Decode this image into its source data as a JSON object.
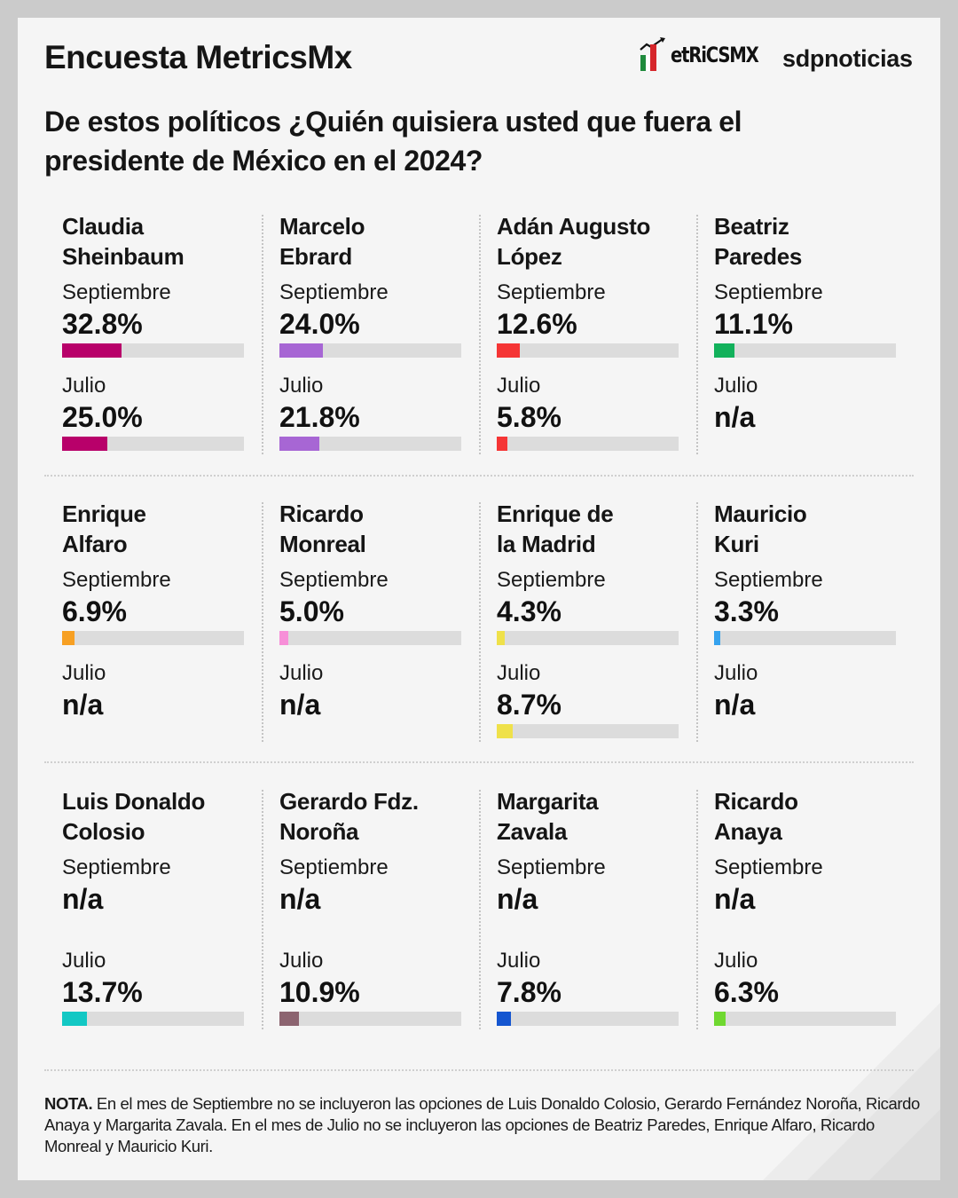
{
  "header": {
    "title": "Encuesta MetricsMx",
    "logo_metrics": "etRiCSMX",
    "logo_metrics_full": "MetRiCSMX",
    "logo_sdp": "sdpnoticias",
    "question": "De estos políticos ¿Quién quisiera usted que fuera el presidente de México en el 2024?"
  },
  "colors": {
    "page_background": "#cbcbcb",
    "card_background": "#f5f5f5",
    "track": "#dcdcdc",
    "logo_green": "#1f8a3c",
    "logo_red": "#d6262b"
  },
  "chart_data": {
    "type": "bar",
    "title": "De estos políticos ¿Quién quisiera usted que fuera el presidente de México en el 2024?",
    "xlabel": "",
    "ylabel": "",
    "ylim": [
      0,
      100
    ],
    "unit": "%",
    "periods": [
      "Septiembre",
      "Julio"
    ],
    "missing_label": "n/a",
    "candidates": [
      {
        "name": "Claudia Sheinbaum",
        "name_lines": [
          "Claudia",
          "Sheinbaum"
        ],
        "color": "#b8006a",
        "septiembre": 32.8,
        "julio": 25.0,
        "septiembre_label": "32.8%",
        "julio_label": "25.0%"
      },
      {
        "name": "Marcelo Ebrard",
        "name_lines": [
          "Marcelo",
          "Ebrard"
        ],
        "color": "#a766d4",
        "septiembre": 24.0,
        "julio": 21.8,
        "septiembre_label": "24.0%",
        "julio_label": "21.8%"
      },
      {
        "name": "Adán Augusto López",
        "name_lines": [
          "Adán Augusto",
          "López"
        ],
        "color": "#f53535",
        "septiembre": 12.6,
        "julio": 5.8,
        "septiembre_label": "12.6%",
        "julio_label": "5.8%"
      },
      {
        "name": "Beatriz Paredes",
        "name_lines": [
          "Beatriz",
          "Paredes"
        ],
        "color": "#12b15b",
        "septiembre": 11.1,
        "julio": null,
        "septiembre_label": "11.1%",
        "julio_label": "n/a"
      },
      {
        "name": "Enrique Alfaro",
        "name_lines": [
          "Enrique",
          "Alfaro"
        ],
        "color": "#f7a023",
        "septiembre": 6.9,
        "julio": null,
        "septiembre_label": "6.9%",
        "julio_label": "n/a"
      },
      {
        "name": "Ricardo Monreal",
        "name_lines": [
          "Ricardo",
          "Monreal"
        ],
        "color": "#f78fd8",
        "septiembre": 5.0,
        "julio": null,
        "septiembre_label": "5.0%",
        "julio_label": "n/a"
      },
      {
        "name": "Enrique de la Madrid",
        "name_lines": [
          "Enrique de",
          "la Madrid"
        ],
        "color": "#efe14a",
        "septiembre": 4.3,
        "julio": 8.7,
        "septiembre_label": "4.3%",
        "julio_label": "8.7%"
      },
      {
        "name": "Mauricio Kuri",
        "name_lines": [
          "Mauricio",
          "Kuri"
        ],
        "color": "#35a2ee",
        "septiembre": 3.3,
        "julio": null,
        "septiembre_label": "3.3%",
        "julio_label": "n/a"
      },
      {
        "name": "Luis Donaldo Colosio",
        "name_lines": [
          "Luis Donaldo",
          "Colosio"
        ],
        "color": "#13c8c4",
        "septiembre": null,
        "julio": 13.7,
        "septiembre_label": "n/a",
        "julio_label": "13.7%"
      },
      {
        "name": "Gerardo Fdz. Noroña",
        "name_lines": [
          "Gerardo Fdz.",
          "Noroña"
        ],
        "color": "#8c6470",
        "septiembre": null,
        "julio": 10.9,
        "septiembre_label": "n/a",
        "julio_label": "10.9%"
      },
      {
        "name": "Margarita Zavala",
        "name_lines": [
          "Margarita",
          "Zavala"
        ],
        "color": "#1556d0",
        "septiembre": null,
        "julio": 7.8,
        "septiembre_label": "n/a",
        "julio_label": "7.8%"
      },
      {
        "name": "Ricardo Anaya",
        "name_lines": [
          "Ricardo",
          "Anaya"
        ],
        "color": "#6fd830",
        "septiembre": null,
        "julio": 6.3,
        "septiembre_label": "n/a",
        "julio_label": "6.3%"
      }
    ]
  },
  "note": {
    "lead": "NOTA.",
    "text": " En el mes de Septiembre no se incluyeron las opciones de Luis Donaldo Colosio, Gerardo Fernández Noroña, Ricardo Anaya y Margarita Zavala. En el mes de Julio no se incluyeron las opciones de Beatriz Paredes, Enrique Alfaro, Ricardo Monreal y Mauricio Kuri."
  }
}
